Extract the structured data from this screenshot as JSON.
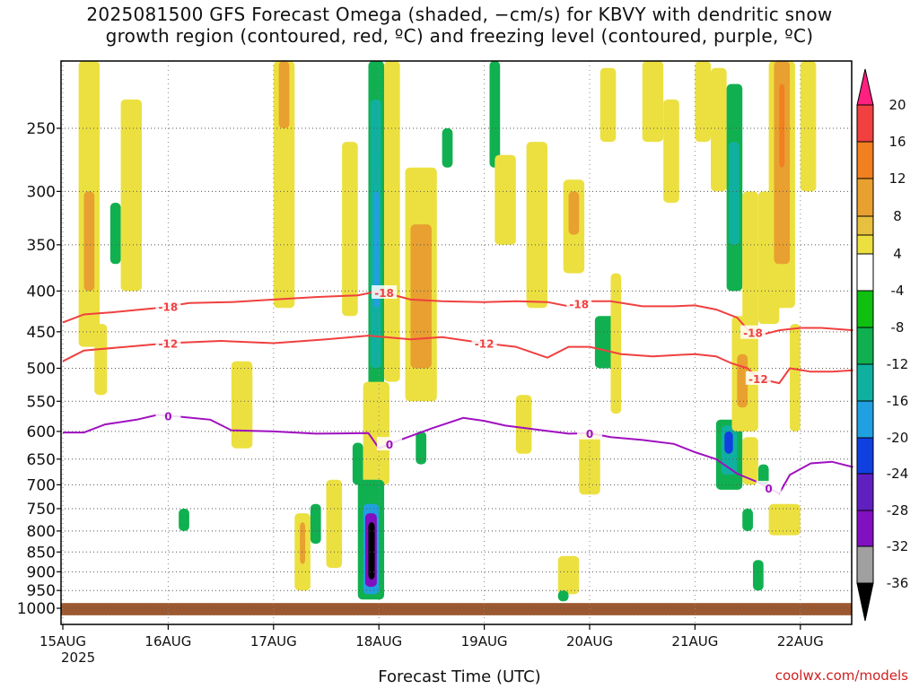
{
  "title_line1": "2025081500 GFS Forecast Omega (shaded, −cm/s) for KBVY with dendritic snow",
  "title_line2": "growth region (contoured, red, ºC) and freezing level (contoured, purple, ºC)",
  "xlabel": "Forecast Time (UTC)",
  "credit": "coolwx.com/models",
  "chart_data": {
    "type": "heatmap",
    "title": "2025081500 GFS Forecast Omega (shaded, −cm/s) for KBVY with dendritic snow growth region (contoured, red, ºC) and freezing level (contoured, purple, ºC)",
    "xlabel": "Forecast Time (UTC)",
    "ylabel": "",
    "x_ticks": [
      "15AUG",
      "16AUG",
      "17AUG",
      "18AUG",
      "19AUG",
      "20AUG",
      "21AUG",
      "22AUG"
    ],
    "x_tick_days": [
      0,
      1,
      2,
      3,
      4,
      5,
      6,
      7
    ],
    "x_start_year": "2025",
    "xlim_days": [
      0,
      7.5
    ],
    "y_axis": "pressure-hPa",
    "y_ticks": [
      250,
      300,
      350,
      400,
      450,
      500,
      550,
      600,
      650,
      700,
      750,
      800,
      850,
      900,
      950,
      1000
    ],
    "ylim": [
      200,
      1010
    ],
    "grid": true,
    "colorbar": {
      "labels": [
        20,
        16,
        12,
        8,
        4,
        -4,
        -8,
        -12,
        -16,
        -20,
        -24,
        -28,
        -32,
        -36
      ],
      "colors": [
        "#ff2080",
        "#f04040",
        "#f08020",
        "#e8a030",
        "#e8c040",
        "#ece040",
        "#ffffff",
        "#10c010",
        "#10b050",
        "#10b0a0",
        "#20a0e0",
        "#1040e0",
        "#6020c0",
        "#8010c0",
        "#a0a0a0",
        "#000000"
      ]
    },
    "contours": [
      {
        "level": "-18",
        "color": "#f04040",
        "points": [
          [
            0,
            438
          ],
          [
            0.2,
            428
          ],
          [
            0.5,
            425
          ],
          [
            0.9,
            420
          ],
          [
            1.2,
            414
          ],
          [
            1.6,
            413
          ],
          [
            2,
            410
          ],
          [
            2.4,
            407
          ],
          [
            2.8,
            405
          ],
          [
            3.0,
            400
          ],
          [
            3.3,
            410
          ],
          [
            3.6,
            412
          ],
          [
            4,
            413
          ],
          [
            4.3,
            412
          ],
          [
            4.6,
            413
          ],
          [
            4.8,
            418
          ],
          [
            5,
            412
          ],
          [
            5.2,
            412
          ],
          [
            5.5,
            418
          ],
          [
            5.8,
            418
          ],
          [
            6,
            417
          ],
          [
            6.2,
            422
          ],
          [
            6.4,
            432
          ],
          [
            6.5,
            447
          ],
          [
            6.6,
            455
          ],
          [
            6.8,
            448
          ],
          [
            7,
            445
          ],
          [
            7.2,
            445
          ],
          [
            7.5,
            448
          ]
        ]
      },
      {
        "level": "-12",
        "color": "#f04040",
        "points": [
          [
            0,
            490
          ],
          [
            0.2,
            475
          ],
          [
            0.6,
            470
          ],
          [
            1,
            465
          ],
          [
            1.5,
            462
          ],
          [
            2,
            465
          ],
          [
            2.5,
            460
          ],
          [
            2.9,
            455
          ],
          [
            3.3,
            460
          ],
          [
            3.6,
            457
          ],
          [
            4,
            465
          ],
          [
            4.3,
            470
          ],
          [
            4.6,
            485
          ],
          [
            4.8,
            470
          ],
          [
            5.0,
            470
          ],
          [
            5.3,
            480
          ],
          [
            5.6,
            483
          ],
          [
            6,
            480
          ],
          [
            6.2,
            483
          ],
          [
            6.35,
            493
          ],
          [
            6.5,
            500
          ],
          [
            6.6,
            515
          ],
          [
            6.8,
            522
          ],
          [
            6.9,
            500
          ],
          [
            7.1,
            505
          ],
          [
            7.3,
            505
          ],
          [
            7.5,
            503
          ]
        ]
      },
      {
        "level": "0",
        "color": "#a010c0",
        "points": [
          [
            0,
            602
          ],
          [
            0.2,
            602
          ],
          [
            0.4,
            588
          ],
          [
            0.7,
            580
          ],
          [
            0.9,
            572
          ],
          [
            1.1,
            575
          ],
          [
            1.4,
            580
          ],
          [
            1.6,
            598
          ],
          [
            2,
            600
          ],
          [
            2.4,
            604
          ],
          [
            2.9,
            603
          ],
          [
            3.0,
            630
          ],
          [
            3.2,
            615
          ],
          [
            3.5,
            595
          ],
          [
            3.8,
            577
          ],
          [
            4,
            582
          ],
          [
            4.2,
            590
          ],
          [
            4.5,
            597
          ],
          [
            4.8,
            604
          ],
          [
            5,
            603
          ],
          [
            5.2,
            610
          ],
          [
            5.5,
            615
          ],
          [
            5.8,
            622
          ],
          [
            6,
            637
          ],
          [
            6.2,
            650
          ],
          [
            6.4,
            678
          ],
          [
            6.6,
            695
          ],
          [
            6.8,
            718
          ],
          [
            6.9,
            680
          ],
          [
            7.1,
            658
          ],
          [
            7.3,
            655
          ],
          [
            7.5,
            665
          ]
        ]
      }
    ],
    "shaded": [
      {
        "d0": 0.15,
        "d1": 0.35,
        "p0": 200,
        "p1": 470,
        "v": 4
      },
      {
        "d0": 0.2,
        "d1": 0.3,
        "p0": 300,
        "p1": 400,
        "v": 8
      },
      {
        "d0": 0.3,
        "d1": 0.42,
        "p0": 440,
        "p1": 540,
        "v": 4
      },
      {
        "d0": 0.45,
        "d1": 0.55,
        "p0": 310,
        "p1": 370,
        "v": -8
      },
      {
        "d0": 0.55,
        "d1": 0.75,
        "p0": 230,
        "p1": 400,
        "v": 4
      },
      {
        "d0": 1.1,
        "d1": 1.2,
        "p0": 750,
        "p1": 800,
        "v": -8
      },
      {
        "d0": 1.6,
        "d1": 1.8,
        "p0": 490,
        "p1": 630,
        "v": 4
      },
      {
        "d0": 2.0,
        "d1": 2.2,
        "p0": 180,
        "p1": 420,
        "v": 4
      },
      {
        "d0": 2.05,
        "d1": 2.15,
        "p0": 195,
        "p1": 250,
        "v": 8
      },
      {
        "d0": 2.2,
        "d1": 2.35,
        "p0": 760,
        "p1": 950,
        "v": 4
      },
      {
        "d0": 2.25,
        "d1": 2.3,
        "p0": 780,
        "p1": 880,
        "v": 8
      },
      {
        "d0": 2.35,
        "d1": 2.45,
        "p0": 740,
        "p1": 830,
        "v": -8
      },
      {
        "d0": 2.5,
        "d1": 2.65,
        "p0": 690,
        "p1": 890,
        "v": 4
      },
      {
        "d0": 2.65,
        "d1": 2.8,
        "p0": 260,
        "p1": 430,
        "v": 4
      },
      {
        "d0": 2.75,
        "d1": 2.85,
        "p0": 620,
        "p1": 700,
        "v": -8
      },
      {
        "d0": 2.9,
        "d1": 3.05,
        "p0": 180,
        "p1": 560,
        "v": -8
      },
      {
        "d0": 2.92,
        "d1": 3.02,
        "p0": 230,
        "p1": 500,
        "v": -12
      },
      {
        "d0": 2.95,
        "d1": 3.0,
        "p0": 300,
        "p1": 420,
        "v": -16
      },
      {
        "d0": 2.85,
        "d1": 3.1,
        "p0": 520,
        "p1": 700,
        "v": 4
      },
      {
        "d0": 2.8,
        "d1": 3.05,
        "p0": 690,
        "p1": 975,
        "v": -8
      },
      {
        "d0": 2.85,
        "d1": 3.0,
        "p0": 740,
        "p1": 960,
        "v": -16
      },
      {
        "d0": 2.87,
        "d1": 2.98,
        "p0": 760,
        "p1": 940,
        "v": -28
      },
      {
        "d0": 2.9,
        "d1": 2.96,
        "p0": 780,
        "p1": 920,
        "v": -36
      },
      {
        "d0": 3.05,
        "d1": 3.2,
        "p0": 180,
        "p1": 520,
        "v": 4
      },
      {
        "d0": 3.25,
        "d1": 3.55,
        "p0": 280,
        "p1": 550,
        "v": 4
      },
      {
        "d0": 3.3,
        "d1": 3.5,
        "p0": 330,
        "p1": 500,
        "v": 8
      },
      {
        "d0": 3.35,
        "d1": 3.45,
        "p0": 600,
        "p1": 660,
        "v": -8
      },
      {
        "d0": 3.6,
        "d1": 3.7,
        "p0": 250,
        "p1": 280,
        "v": -8
      },
      {
        "d0": 4.05,
        "d1": 4.15,
        "p0": 200,
        "p1": 280,
        "v": -8
      },
      {
        "d0": 4.1,
        "d1": 4.3,
        "p0": 270,
        "p1": 350,
        "v": 4
      },
      {
        "d0": 4.3,
        "d1": 4.45,
        "p0": 540,
        "p1": 640,
        "v": 4
      },
      {
        "d0": 4.4,
        "d1": 4.6,
        "p0": 260,
        "p1": 420,
        "v": 4
      },
      {
        "d0": 4.75,
        "d1": 4.95,
        "p0": 290,
        "p1": 380,
        "v": 4
      },
      {
        "d0": 4.8,
        "d1": 4.9,
        "p0": 300,
        "p1": 340,
        "v": 8
      },
      {
        "d0": 4.7,
        "d1": 4.9,
        "p0": 860,
        "p1": 960,
        "v": 4
      },
      {
        "d0": 4.7,
        "d1": 4.8,
        "p0": 950,
        "p1": 980,
        "v": -8
      },
      {
        "d0": 4.9,
        "d1": 5.1,
        "p0": 600,
        "p1": 720,
        "v": 4
      },
      {
        "d0": 5.05,
        "d1": 5.25,
        "p0": 430,
        "p1": 500,
        "v": -8
      },
      {
        "d0": 5.1,
        "d1": 5.25,
        "p0": 210,
        "p1": 260,
        "v": 4
      },
      {
        "d0": 5.2,
        "d1": 5.3,
        "p0": 380,
        "p1": 570,
        "v": 4
      },
      {
        "d0": 5.5,
        "d1": 5.7,
        "p0": 200,
        "p1": 260,
        "v": 4
      },
      {
        "d0": 5.7,
        "d1": 5.85,
        "p0": 230,
        "p1": 310,
        "v": 4
      },
      {
        "d0": 6.0,
        "d1": 6.15,
        "p0": 200,
        "p1": 260,
        "v": 4
      },
      {
        "d0": 6.15,
        "d1": 6.3,
        "p0": 210,
        "p1": 300,
        "v": 4
      },
      {
        "d0": 6.3,
        "d1": 6.45,
        "p0": 220,
        "p1": 400,
        "v": -8
      },
      {
        "d0": 6.32,
        "d1": 6.42,
        "p0": 260,
        "p1": 350,
        "v": -12
      },
      {
        "d0": 6.45,
        "d1": 6.6,
        "p0": 300,
        "p1": 450,
        "v": 4
      },
      {
        "d0": 6.2,
        "d1": 6.45,
        "p0": 580,
        "p1": 710,
        "v": -8
      },
      {
        "d0": 6.25,
        "d1": 6.4,
        "p0": 590,
        "p1": 680,
        "v": -12
      },
      {
        "d0": 6.28,
        "d1": 6.36,
        "p0": 600,
        "p1": 640,
        "v": -20
      },
      {
        "d0": 6.35,
        "d1": 6.6,
        "p0": 430,
        "p1": 600,
        "v": 4
      },
      {
        "d0": 6.4,
        "d1": 6.5,
        "p0": 480,
        "p1": 560,
        "v": 8
      },
      {
        "d0": 6.45,
        "d1": 6.55,
        "p0": 750,
        "p1": 800,
        "v": -8
      },
      {
        "d0": 6.6,
        "d1": 6.8,
        "p0": 300,
        "p1": 440,
        "v": 4
      },
      {
        "d0": 6.7,
        "d1": 6.95,
        "p0": 180,
        "p1": 420,
        "v": 4
      },
      {
        "d0": 6.75,
        "d1": 6.9,
        "p0": 200,
        "p1": 370,
        "v": 8
      },
      {
        "d0": 6.8,
        "d1": 6.85,
        "p0": 220,
        "p1": 280,
        "v": 12
      },
      {
        "d0": 6.9,
        "d1": 7.0,
        "p0": 440,
        "p1": 600,
        "v": 4
      },
      {
        "d0": 6.7,
        "d1": 7.0,
        "p0": 740,
        "p1": 810,
        "v": 4
      },
      {
        "d0": 6.6,
        "d1": 6.7,
        "p0": 660,
        "p1": 700,
        "v": -8
      },
      {
        "d0": 6.55,
        "d1": 6.65,
        "p0": 870,
        "p1": 950,
        "v": -8
      },
      {
        "d0": 7.0,
        "d1": 7.15,
        "p0": 200,
        "p1": 300,
        "v": 4
      },
      {
        "d0": 6.45,
        "d1": 6.6,
        "p0": 610,
        "p1": 700,
        "v": 4
      }
    ],
    "surface_band": {
      "p0": 985,
      "p1": 1010,
      "color": "#9c5830"
    }
  }
}
